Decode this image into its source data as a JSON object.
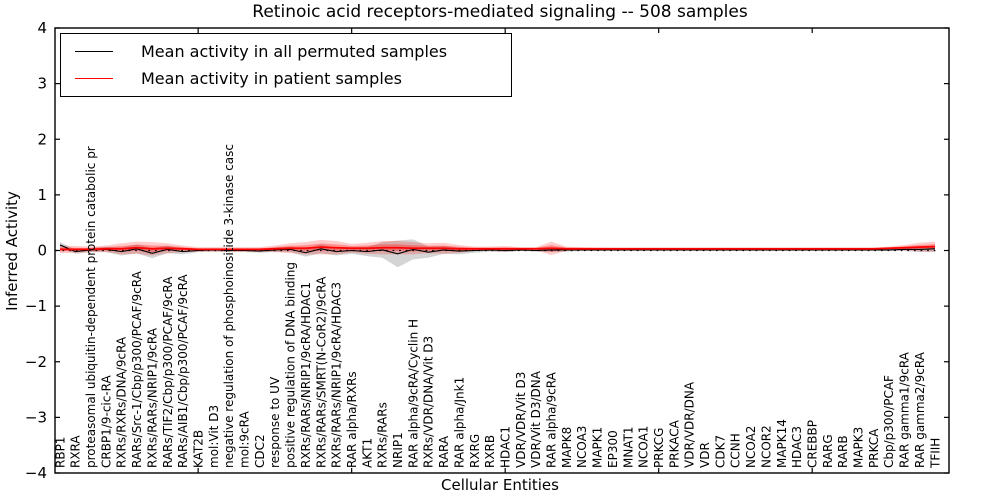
{
  "figure": {
    "title": "Retinoic acid receptors-mediated signaling -- 508 samples"
  },
  "legend": {
    "entries": [
      {
        "label": "Mean activity in all permuted samples",
        "color": "#000000"
      },
      {
        "label": "Mean activity in patient samples",
        "color": "#ff0000"
      }
    ]
  },
  "axes": {
    "x_label": "Cellular Entities",
    "y_label": "Inferred Activity",
    "y_tick_labels": [
      "4",
      "3",
      "2",
      "1",
      "0",
      "−1",
      "−2",
      "−3",
      "−4"
    ],
    "y_tick_values": [
      4,
      3,
      2,
      1,
      0,
      -1,
      -2,
      -3,
      -4
    ]
  },
  "chart_data": {
    "type": "line",
    "title": "Retinoic acid receptors-mediated signaling -- 508 samples",
    "xlabel": "Cellular Entities",
    "ylabel": "Inferred Activity",
    "ylim": [
      -4,
      4
    ],
    "grid": false,
    "legend_position": "upper left",
    "zero_line": {
      "y": 0,
      "style": "dotted",
      "color": "#000000"
    },
    "x_major_tick_indices": [
      9,
      19,
      29,
      39,
      49
    ],
    "categories": [
      "RBP1",
      "RXRA",
      "proteasomal ubiquitin-dependent protein catabolic pr",
      "CRBP1/9-cic-RA",
      "RXRs/RXRs/DNA/9cRA",
      "RARs/Src-1/Cbp/p300/PCAF/9cRA",
      "RXRs/RARs/NRIP1/9cRA",
      "RARs/TIF2/Cbp/p300/PCAF/9cRA",
      "RARs/AIB1/Cbp/p300/PCAF/9cRA",
      "KAT2B",
      "mol:Vit D3",
      "negative regulation of phosphoinositide 3-kinase casc",
      "mol:9cRA",
      "CDC2",
      "response to UV",
      "positive regulation of DNA binding",
      "RXRs/RARs/NRIP1/9cRA/HDAC1",
      "RXRs/RARs/SMRT(N-CoR2)/9cRA",
      "RXRs/RARs/NRIP1/9cRA/HDAC3",
      "RAR alpha/RXRs",
      "AKT1",
      "RXRs/RARs",
      "NRIP1",
      "RAR alpha/9cRA/Cyclin H",
      "RXRs/VDR/DNA/Vit D3",
      "RARA",
      "RAR alpha/Jnk1",
      "RXRG",
      "RXRB",
      "HDAC1",
      "VDR/VDR/Vit D3",
      "VDR/Vit D3/DNA",
      "RAR alpha/9cRA",
      "MAPK8",
      "NCOA3",
      "MAPK1",
      "EP300",
      "MNAT1",
      "NCOA1",
      "PRKCG",
      "PRKACA",
      "VDR/VDR/DNA",
      "VDR",
      "CDK7",
      "CCNH",
      "NCOA2",
      "NCOR2",
      "MAPK14",
      "HDAC3",
      "CREBBP",
      "RARG",
      "RARB",
      "MAPK3",
      "PRKCA",
      "Cbp/p300/PCAF",
      "RAR gamma1/9cRA",
      "RAR gamma2/9cRA",
      "TFIIH"
    ],
    "series": [
      {
        "name": "Mean activity in all permuted samples",
        "color": "#000000",
        "band_color": "#000000",
        "values": [
          0.1,
          -0.02,
          0.01,
          0.02,
          -0.02,
          0.03,
          -0.05,
          0.02,
          -0.02,
          0.0,
          0.01,
          0.0,
          0.0,
          -0.01,
          0.01,
          0.02,
          -0.04,
          0.03,
          -0.02,
          0.0,
          -0.02,
          0.01,
          -0.06,
          0.02,
          -0.03,
          0.01,
          -0.01,
          0.0,
          0.01,
          0.0,
          0.01,
          0.0,
          0.01,
          0.01,
          0.01,
          0.01,
          0.01,
          0.01,
          0.01,
          0.01,
          0.01,
          0.01,
          0.01,
          0.01,
          0.01,
          0.01,
          0.01,
          0.01,
          0.01,
          0.01,
          0.01,
          0.01,
          0.01,
          0.01,
          0.01,
          0.02,
          0.02,
          0.03
        ],
        "band_halfwidth": [
          0.05,
          0.04,
          0.04,
          0.05,
          0.07,
          0.08,
          0.09,
          0.07,
          0.05,
          0.03,
          0.03,
          0.03,
          0.03,
          0.03,
          0.04,
          0.05,
          0.07,
          0.08,
          0.07,
          0.06,
          0.08,
          0.14,
          0.24,
          0.18,
          0.1,
          0.07,
          0.06,
          0.04,
          0.03,
          0.03,
          0.02,
          0.02,
          0.04,
          0.03,
          0.02,
          0.02,
          0.015,
          0.015,
          0.015,
          0.015,
          0.015,
          0.015,
          0.015,
          0.015,
          0.015,
          0.015,
          0.015,
          0.015,
          0.015,
          0.015,
          0.015,
          0.015,
          0.015,
          0.015,
          0.02,
          0.03,
          0.05,
          0.06
        ]
      },
      {
        "name": "Mean activity in patient samples",
        "color": "#ff0000",
        "band_color": "#ff0000",
        "values": [
          0.02,
          0.02,
          0.02,
          0.03,
          0.03,
          0.05,
          0.03,
          0.04,
          0.03,
          0.02,
          0.02,
          0.02,
          0.02,
          0.02,
          0.03,
          0.04,
          0.04,
          0.06,
          0.05,
          0.04,
          0.04,
          0.05,
          0.05,
          0.04,
          0.04,
          0.04,
          0.03,
          0.03,
          0.03,
          0.03,
          0.03,
          0.03,
          0.04,
          0.03,
          0.03,
          0.03,
          0.03,
          0.03,
          0.03,
          0.03,
          0.03,
          0.03,
          0.03,
          0.03,
          0.03,
          0.03,
          0.03,
          0.03,
          0.03,
          0.03,
          0.03,
          0.03,
          0.03,
          0.03,
          0.04,
          0.05,
          0.06,
          0.07
        ],
        "band_halfwidth": [
          0.07,
          0.06,
          0.05,
          0.06,
          0.1,
          0.11,
          0.12,
          0.09,
          0.06,
          0.04,
          0.04,
          0.04,
          0.04,
          0.04,
          0.06,
          0.09,
          0.11,
          0.13,
          0.12,
          0.08,
          0.1,
          0.12,
          0.12,
          0.11,
          0.09,
          0.1,
          0.07,
          0.04,
          0.04,
          0.05,
          0.03,
          0.03,
          0.12,
          0.04,
          0.03,
          0.025,
          0.02,
          0.02,
          0.02,
          0.02,
          0.02,
          0.02,
          0.02,
          0.02,
          0.02,
          0.02,
          0.02,
          0.02,
          0.02,
          0.02,
          0.02,
          0.02,
          0.02,
          0.02,
          0.03,
          0.05,
          0.08,
          0.09
        ]
      }
    ]
  }
}
